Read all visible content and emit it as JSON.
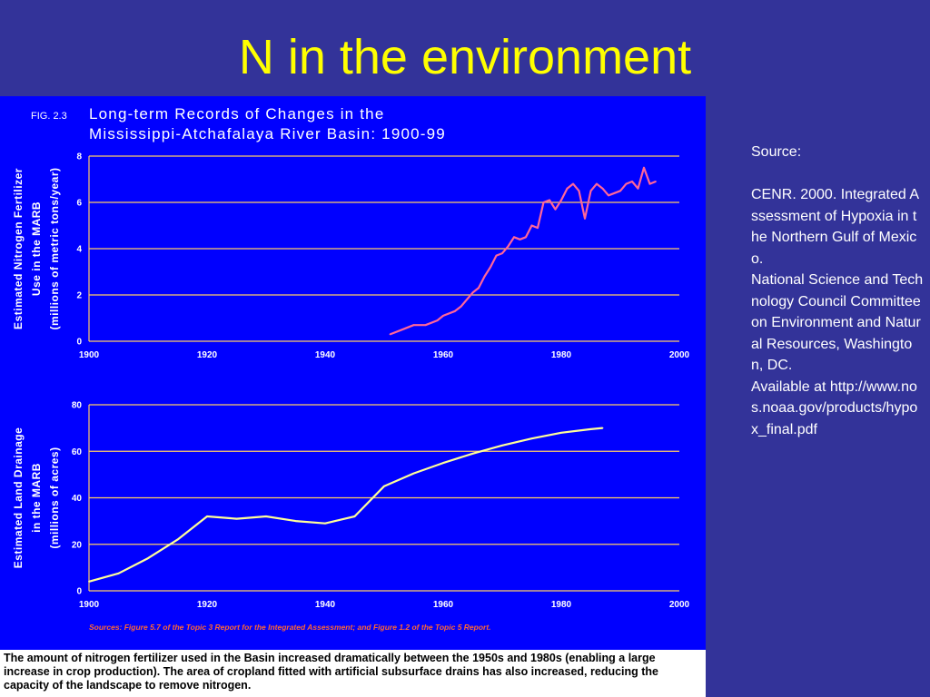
{
  "slide": {
    "title": "N in the environment"
  },
  "figure": {
    "fig_number": "FIG. 2.3",
    "title_line1": "Long-term Records of Changes in the",
    "title_line2": "Mississippi-Atchafalaya River Basin: 1900-99",
    "sources_note": "Sources: Figure 5.7 of the Topic 3 Report for the Integrated Assessment; and Figure 1.2 of the Topic 5 Report.",
    "caption": "The amount of nitrogen fertilizer used in the Basin increased dramatically between the 1950s and 1980s (enabling a large increase in crop production). The area of cropland fitted with artificial subsurface drains has also increased, reducing the capacity of the landscape to remove nitrogen.",
    "colors": {
      "panel_background": "#0000ff",
      "slide_background": "#333399",
      "fertilizer_line": "#ff6699",
      "drainage_line": "#ffff99",
      "axis_line": "#ffcc66",
      "title_color": "#ffff00"
    }
  },
  "source": {
    "lines": [
      "Source:",
      "",
      "CENR. 2000. Integrated Assessment of Hypoxia in the Northern Gulf of Mexico.",
      "National Science and Technology Council Committee on Environment and Natural Resources, Washington, DC.",
      "Available at http://www.nos.noaa.gov/products/hypox_final.pdf"
    ]
  },
  "chart_data": [
    {
      "type": "line",
      "ylabel_lines": [
        "Estimated Nitrogen Fertilizer",
        "Use in the MARB",
        "(millions of metric tons/year)"
      ],
      "xlim": [
        1900,
        2000
      ],
      "ylim": [
        0,
        8
      ],
      "x_ticks": [
        1900,
        1920,
        1940,
        1960,
        1980,
        2000
      ],
      "y_ticks": [
        0,
        2,
        4,
        6,
        8
      ],
      "grid": true,
      "series": [
        {
          "x": [
            1951,
            1953,
            1955,
            1957,
            1959,
            1960,
            1962,
            1963,
            1965,
            1966,
            1967,
            1968,
            1969,
            1970,
            1971,
            1972,
            1973,
            1974,
            1975,
            1976,
            1977,
            1978,
            1979,
            1980,
            1981,
            1982,
            1983,
            1984,
            1985,
            1986,
            1987,
            1988,
            1989,
            1990,
            1991,
            1992,
            1993,
            1994,
            1995,
            1996
          ],
          "values": [
            0.3,
            0.5,
            0.7,
            0.7,
            0.9,
            1.1,
            1.3,
            1.5,
            2.1,
            2.3,
            2.8,
            3.2,
            3.7,
            3.8,
            4.1,
            4.5,
            4.4,
            4.5,
            5.0,
            4.9,
            6.0,
            6.1,
            5.7,
            6.1,
            6.6,
            6.8,
            6.5,
            5.3,
            6.5,
            6.8,
            6.6,
            6.3,
            6.4,
            6.5,
            6.8,
            6.9,
            6.6,
            7.5,
            6.8,
            6.9
          ]
        }
      ]
    },
    {
      "type": "line",
      "ylabel_lines": [
        "Estimated Land Drainage",
        "in the MARB",
        "(millions of acres)"
      ],
      "xlim": [
        1900,
        2000
      ],
      "ylim": [
        0,
        80
      ],
      "x_ticks": [
        1900,
        1920,
        1940,
        1960,
        1980,
        2000
      ],
      "y_ticks": [
        0,
        20,
        40,
        60,
        80
      ],
      "grid": true,
      "series": [
        {
          "x": [
            1900,
            1905,
            1910,
            1915,
            1920,
            1925,
            1930,
            1935,
            1940,
            1945,
            1950,
            1955,
            1960,
            1965,
            1970,
            1975,
            1980,
            1985,
            1987
          ],
          "values": [
            4,
            7.5,
            14,
            22,
            32,
            31,
            32,
            30,
            29,
            32,
            45,
            50.5,
            55,
            59,
            62.5,
            65.5,
            68,
            69.5,
            70
          ]
        }
      ]
    }
  ]
}
